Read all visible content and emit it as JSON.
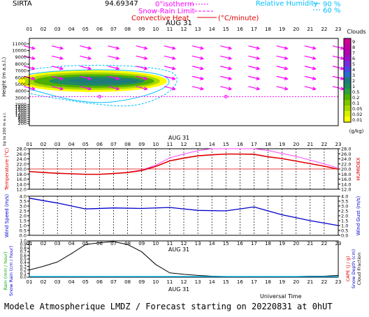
{
  "header": {
    "site": "SIRTA",
    "altitude_text": "94.69347",
    "isotherm_label": "0°isotherm",
    "snow_rain_label": "Snow-Rain Limit",
    "convective_label": "Convective Heat",
    "convective_unit": "(°C/minute)",
    "rh_label": "Relative Humidity",
    "rh_90": "90 %",
    "rh_60": "60 %"
  },
  "hours": [
    "01",
    "02",
    "03",
    "04",
    "05",
    "06",
    "07",
    "08",
    "09",
    "10",
    "11",
    "12",
    "13",
    "14",
    "15",
    "16",
    "17",
    "18",
    "19",
    "20",
    "21",
    "22",
    "23"
  ],
  "date_label": "AUG 31",
  "footer": {
    "universal_time": "Universal Time",
    "title": "Modele Atmospherique LMDZ / Forecast starting on 20220831 at 0hUT"
  },
  "colors": {
    "isotherm": "#ff00ff",
    "temperature": "#e00000",
    "humidex": "#ff44ff",
    "wind": "#0000cc",
    "precip": "#000000",
    "rh": "#00bfff"
  },
  "chart_data": [
    {
      "type": "heatmap",
      "title": "",
      "ylabel": "Height (m a.s.l.)",
      "y_ticks": [
        11000,
        10000,
        9000,
        8000,
        7000,
        6000,
        5000,
        4000,
        3000,
        2000,
        1800,
        1600,
        1400,
        1200,
        1000,
        800,
        600,
        400,
        200
      ],
      "colorbar_title": "Clouds",
      "colorbar_unit": "(g/kg)",
      "colorbar_levels": [
        "0.01",
        "0.02",
        "0.05",
        "0.1",
        "0.2",
        "0.5",
        "1",
        "2",
        "3",
        "4",
        "5",
        "6",
        "7",
        "8",
        "9"
      ],
      "colorbar_colors": [
        "#ffff00",
        "#d6f000",
        "#a8d800",
        "#7cc400",
        "#50b000",
        "#30a040",
        "#208a60",
        "#1f7a7a",
        "#2a6cc8",
        "#4a4ae0",
        "#7a2ad8",
        "#9a10c8",
        "#b000b0",
        "#c000a0",
        "#d00090"
      ],
      "isotherm_height_m": 3200,
      "cloud_layer_m": [
        4300,
        6700
      ],
      "ylabel_lower": "Up to 200 m a.s.l."
    },
    {
      "type": "line",
      "ylabel": "Temperature (°C)",
      "ylabel_right": "HUMIDEX",
      "ylim": [
        12,
        28
      ],
      "y_ticks": [
        12,
        14,
        16,
        18,
        20,
        22,
        24,
        26,
        28
      ],
      "reference_line": 20,
      "x": [
        1,
        2,
        3,
        4,
        5,
        6,
        7,
        8,
        9,
        10,
        11,
        12,
        13,
        14,
        15,
        16,
        17,
        18,
        19,
        20,
        21,
        22,
        23
      ],
      "series": [
        {
          "values": [
            19,
            18.6,
            18.3,
            18.1,
            17.9,
            17.9,
            18.2,
            18.6,
            19.4,
            21,
            23.2,
            24.3,
            25.2,
            25.6,
            25.9,
            25.9,
            25.8,
            24.8,
            24.1,
            23.1,
            22.1,
            21.1,
            19.9
          ]
        },
        {
          "values": [
            19,
            18.6,
            18.3,
            18.1,
            17.9,
            17.9,
            18.2,
            18.7,
            19.6,
            21.5,
            24.4,
            25.9,
            27.2,
            28,
            28,
            28,
            28,
            27.3,
            26.1,
            25,
            23.5,
            22,
            20.4
          ]
        }
      ]
    },
    {
      "type": "line",
      "ylabel": "Wind Speed (m/s)",
      "ylabel_right": "Wind Gust (m/s)",
      "ylim": [
        0,
        4
      ],
      "y_ticks": [
        0.0,
        0.5,
        1.0,
        1.5,
        2.0,
        2.5,
        3.0,
        3.5,
        4.0
      ],
      "x": [
        1,
        3,
        5,
        7,
        9,
        11,
        13,
        15,
        17,
        19,
        21,
        23
      ],
      "series": [
        {
          "values": [
            3.8,
            3.3,
            2.7,
            2.8,
            2.75,
            2.85,
            2.55,
            2.5,
            2.9,
            2.1,
            1.5,
            1.0
          ]
        }
      ]
    },
    {
      "type": "line",
      "ylabel": "Rain (mm / hour) Snow Rain (cm / hour)",
      "ylabel_right": "CAPE (J/g) Snow Depth (cm) Cloud Fraction",
      "ylim": [
        0,
        1
      ],
      "y_ticks": [
        0.0,
        0.1,
        0.2,
        0.3,
        0.4,
        0.5,
        0.6,
        0.7,
        0.8,
        0.9,
        1.0
      ],
      "x": [
        1,
        2,
        3,
        4,
        5,
        6,
        7,
        8,
        9,
        10,
        11,
        12,
        13,
        14,
        15,
        16,
        17,
        18,
        19,
        20,
        21,
        22,
        23
      ],
      "series": [
        {
          "values": [
            0.2,
            0.3,
            0.42,
            0.65,
            0.9,
            0.95,
            0.98,
            0.9,
            0.7,
            0.35,
            0.12,
            0.08,
            0.05,
            0.03,
            0.02,
            0.02,
            0.02,
            0.02,
            0.02,
            0.02,
            0.03,
            0.03,
            0.05
          ]
        }
      ]
    }
  ]
}
